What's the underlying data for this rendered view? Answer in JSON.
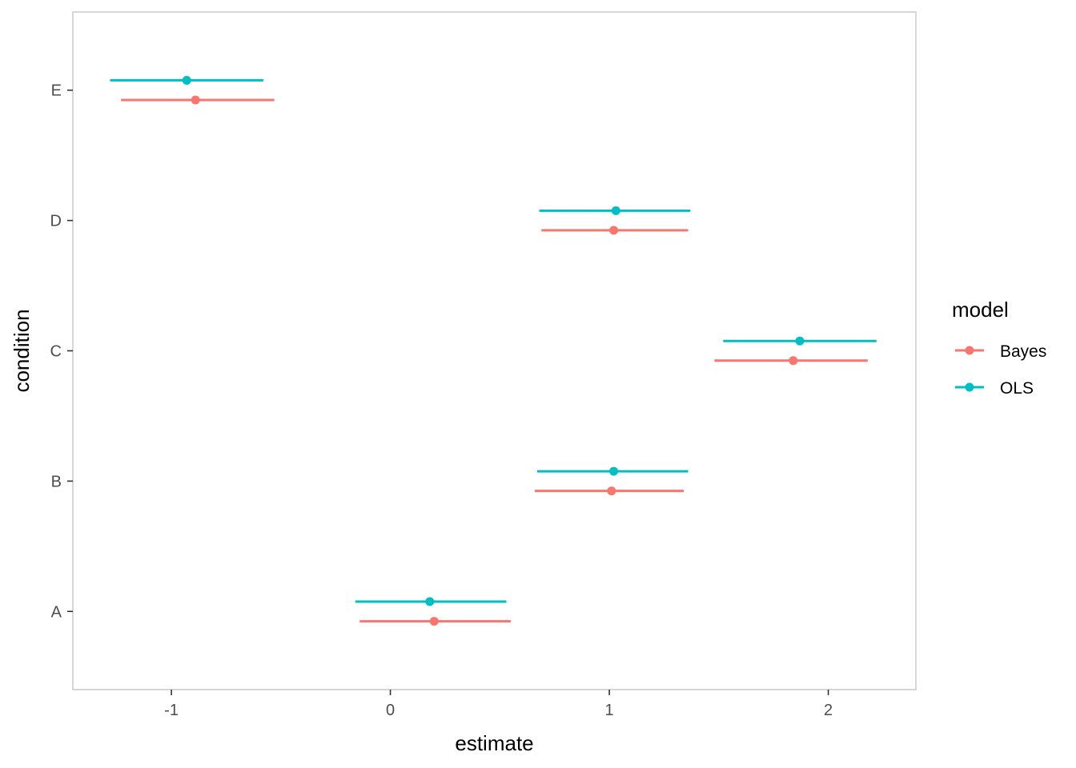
{
  "chart_data": {
    "type": "dot-whisker",
    "title": "",
    "xlabel": "estimate",
    "ylabel": "condition",
    "xlim": [
      -1.45,
      2.4
    ],
    "x_ticks": [
      -1,
      0,
      1,
      2
    ],
    "x_tick_labels": [
      "-1",
      "0",
      "1",
      "2"
    ],
    "categories": [
      "A",
      "B",
      "C",
      "D",
      "E"
    ],
    "grid": false,
    "legend": {
      "title": "model",
      "position": "right",
      "entries": [
        "Bayes",
        "OLS"
      ]
    },
    "series": [
      {
        "name": "Bayes",
        "color": "#F8766D",
        "points": [
          {
            "category": "A",
            "estimate": 0.2,
            "low": -0.14,
            "high": 0.55
          },
          {
            "category": "B",
            "estimate": 1.01,
            "low": 0.66,
            "high": 1.34
          },
          {
            "category": "C",
            "estimate": 1.84,
            "low": 1.48,
            "high": 2.18
          },
          {
            "category": "D",
            "estimate": 1.02,
            "low": 0.69,
            "high": 1.36
          },
          {
            "category": "E",
            "estimate": -0.89,
            "low": -1.23,
            "high": -0.53
          }
        ]
      },
      {
        "name": "OLS",
        "color": "#00BFC4",
        "points": [
          {
            "category": "A",
            "estimate": 0.18,
            "low": -0.16,
            "high": 0.53
          },
          {
            "category": "B",
            "estimate": 1.02,
            "low": 0.67,
            "high": 1.36
          },
          {
            "category": "C",
            "estimate": 1.87,
            "low": 1.52,
            "high": 2.22
          },
          {
            "category": "D",
            "estimate": 1.03,
            "low": 0.68,
            "high": 1.37
          },
          {
            "category": "E",
            "estimate": -0.93,
            "low": -1.28,
            "high": -0.58
          }
        ]
      }
    ]
  }
}
